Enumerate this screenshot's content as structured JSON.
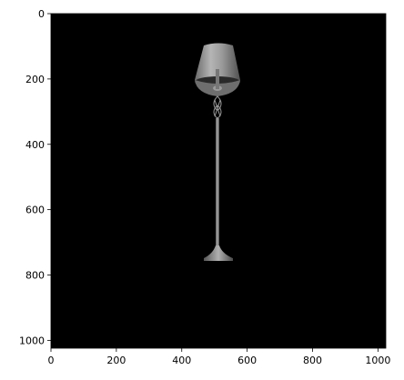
{
  "image": {
    "subject": "floor-lamp-render",
    "background_color": "#000000",
    "pixel_extent": {
      "width": 1024,
      "height": 1024
    }
  },
  "axes": {
    "x": {
      "range": [
        0,
        1024
      ],
      "ticks": [
        0,
        200,
        400,
        600,
        800,
        1000
      ],
      "tick_labels": [
        "0",
        "200",
        "400",
        "600",
        "800",
        "1000"
      ]
    },
    "y": {
      "range": [
        0,
        1024
      ],
      "inverted": true,
      "ticks": [
        0,
        200,
        400,
        600,
        800,
        1000
      ],
      "tick_labels": [
        "0",
        "200",
        "400",
        "600",
        "800",
        "1000"
      ]
    }
  },
  "colors": {
    "frame": "#000000",
    "lamp_light": "#b8b8b8",
    "lamp_mid": "#7a7a7a",
    "lamp_dark": "#3c3c3c"
  }
}
